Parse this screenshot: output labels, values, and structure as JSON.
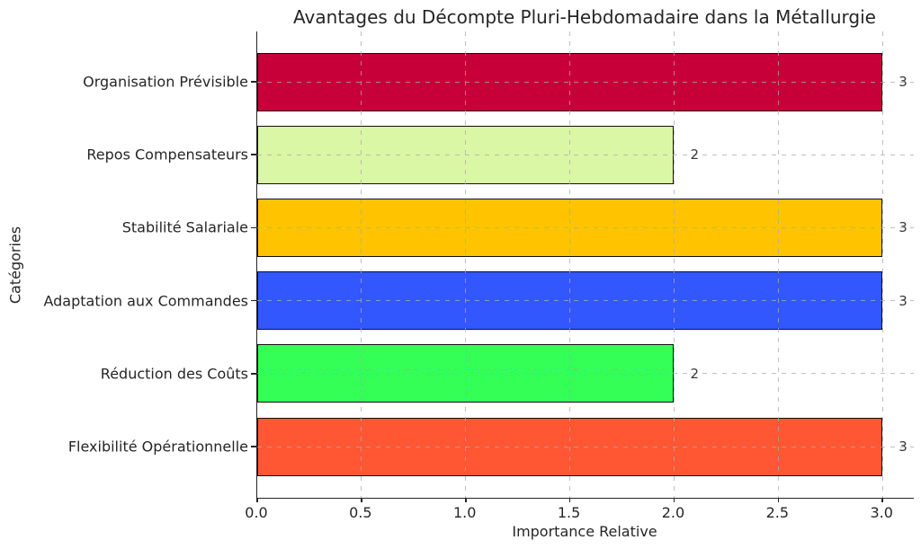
{
  "chart": {
    "title": "Avantages du Décompte Pluri-Hebdomadaire dans la Métallurgie",
    "xlabel": "Importance Relative",
    "ylabel": "Catégories"
  },
  "chart_data": {
    "type": "bar",
    "orientation": "horizontal",
    "title": "Avantages du Décompte Pluri-Hebdomadaire dans la Métallurgie",
    "xlabel": "Importance Relative",
    "ylabel": "Catégories",
    "categories": [
      "Organisation Prévisible",
      "Repos Compensateurs",
      "Stabilité Salariale",
      "Adaptation aux Commandes",
      "Réduction des Coûts",
      "Flexibilité Opérationnelle"
    ],
    "values": [
      3,
      2,
      3,
      3,
      2,
      3
    ],
    "value_labels": [
      "3",
      "2",
      "3",
      "3",
      "2",
      "3"
    ],
    "bar_colors": [
      "#C70039",
      "#DAF7A6",
      "#FFC300",
      "#3357FF",
      "#33FF57",
      "#FF5733"
    ],
    "bar_edge_color": "#111111",
    "xticks": [
      0.0,
      0.5,
      1.0,
      1.5,
      2.0,
      2.5,
      3.0
    ],
    "xtick_labels": [
      "0.0",
      "0.5",
      "1.0",
      "1.5",
      "2.0",
      "2.5",
      "3.0"
    ],
    "xlim": [
      0,
      3.15
    ],
    "grid": true,
    "grid_style": "dashed",
    "legend": false
  }
}
